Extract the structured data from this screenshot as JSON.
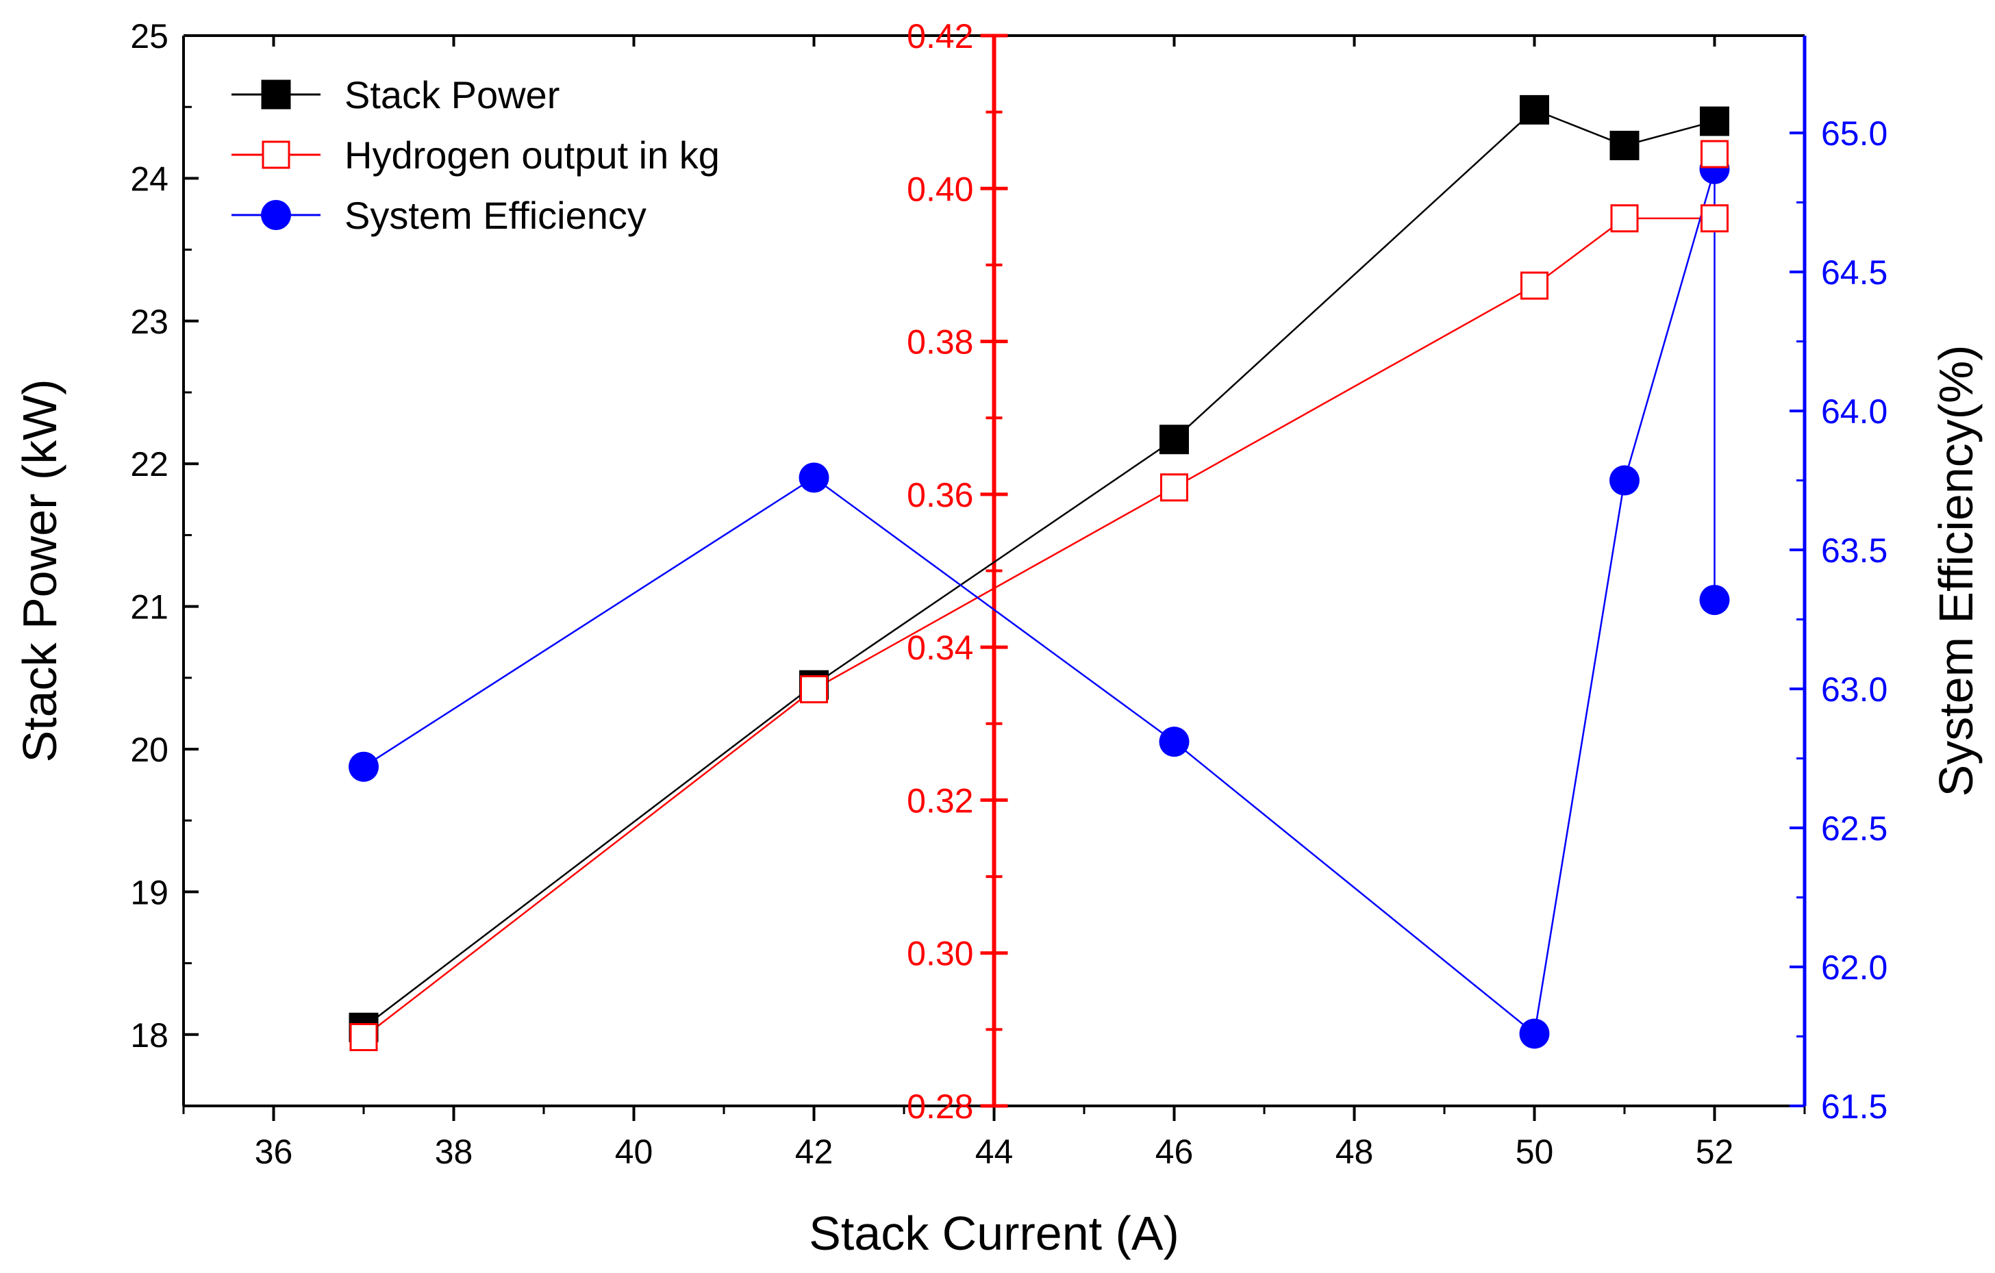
{
  "chart_data": {
    "type": "line",
    "title": "",
    "xlabel": "Stack Current (A)",
    "xlim": [
      35,
      53
    ],
    "xticks": [
      "36",
      "38",
      "40",
      "42",
      "44",
      "46",
      "48",
      "50",
      "52"
    ],
    "x": [
      37,
      42,
      46,
      50,
      51,
      52
    ],
    "left_axis": {
      "label": "Stack Power (kW)",
      "ylim": [
        17.5,
        25
      ],
      "ticks": [
        "18",
        "19",
        "20",
        "21",
        "22",
        "23",
        "24",
        "25"
      ],
      "color": "#000000"
    },
    "middle_axis": {
      "label": "",
      "position_x": 44,
      "ylim": [
        0.28,
        0.42
      ],
      "ticks": [
        "0.28",
        "0.30",
        "0.32",
        "0.34",
        "0.36",
        "0.38",
        "0.40",
        "0.42"
      ],
      "color": "#ff0000"
    },
    "right_axis": {
      "label": "System Efficiency(%)",
      "ylim": [
        61.5,
        65.35
      ],
      "ticks": [
        "61.5",
        "62.0",
        "62.5",
        "63.0",
        "63.5",
        "64.0",
        "64.5",
        "65.0"
      ],
      "color": "#0000ff"
    },
    "series": [
      {
        "name": "Stack Power",
        "axis": "left_axis",
        "color": "#000000",
        "marker": "filled-square",
        "values": [
          18.05,
          20.45,
          22.17,
          24.48,
          24.23,
          24.4
        ]
      },
      {
        "name": "Hydrogen output in kg",
        "axis": "middle_axis",
        "color": "#ff0000",
        "marker": "open-square",
        "values": [
          0.289,
          0.3345,
          0.3609,
          0.3873,
          0.3961,
          0.3961
        ]
      },
      {
        "name": "System Efficiency",
        "axis": "right_axis",
        "color": "#0000ff",
        "marker": "filled-circle",
        "x": [
          37,
          42,
          46,
          50,
          51,
          52,
          52
        ],
        "values": [
          62.72,
          63.76,
          62.81,
          61.76,
          63.75,
          64.87,
          63.32
        ]
      },
      {
        "name": "",
        "axis": "middle_axis",
        "color": "#ff0000",
        "marker": "open-square",
        "note": "additional hydrogen point at 52 A",
        "x": [
          52
        ],
        "values": [
          0.4045
        ]
      }
    ],
    "legend": {
      "placement": "top-left",
      "entries": [
        "Stack Power",
        "Hydrogen output in kg",
        "System Efficiency"
      ]
    }
  }
}
